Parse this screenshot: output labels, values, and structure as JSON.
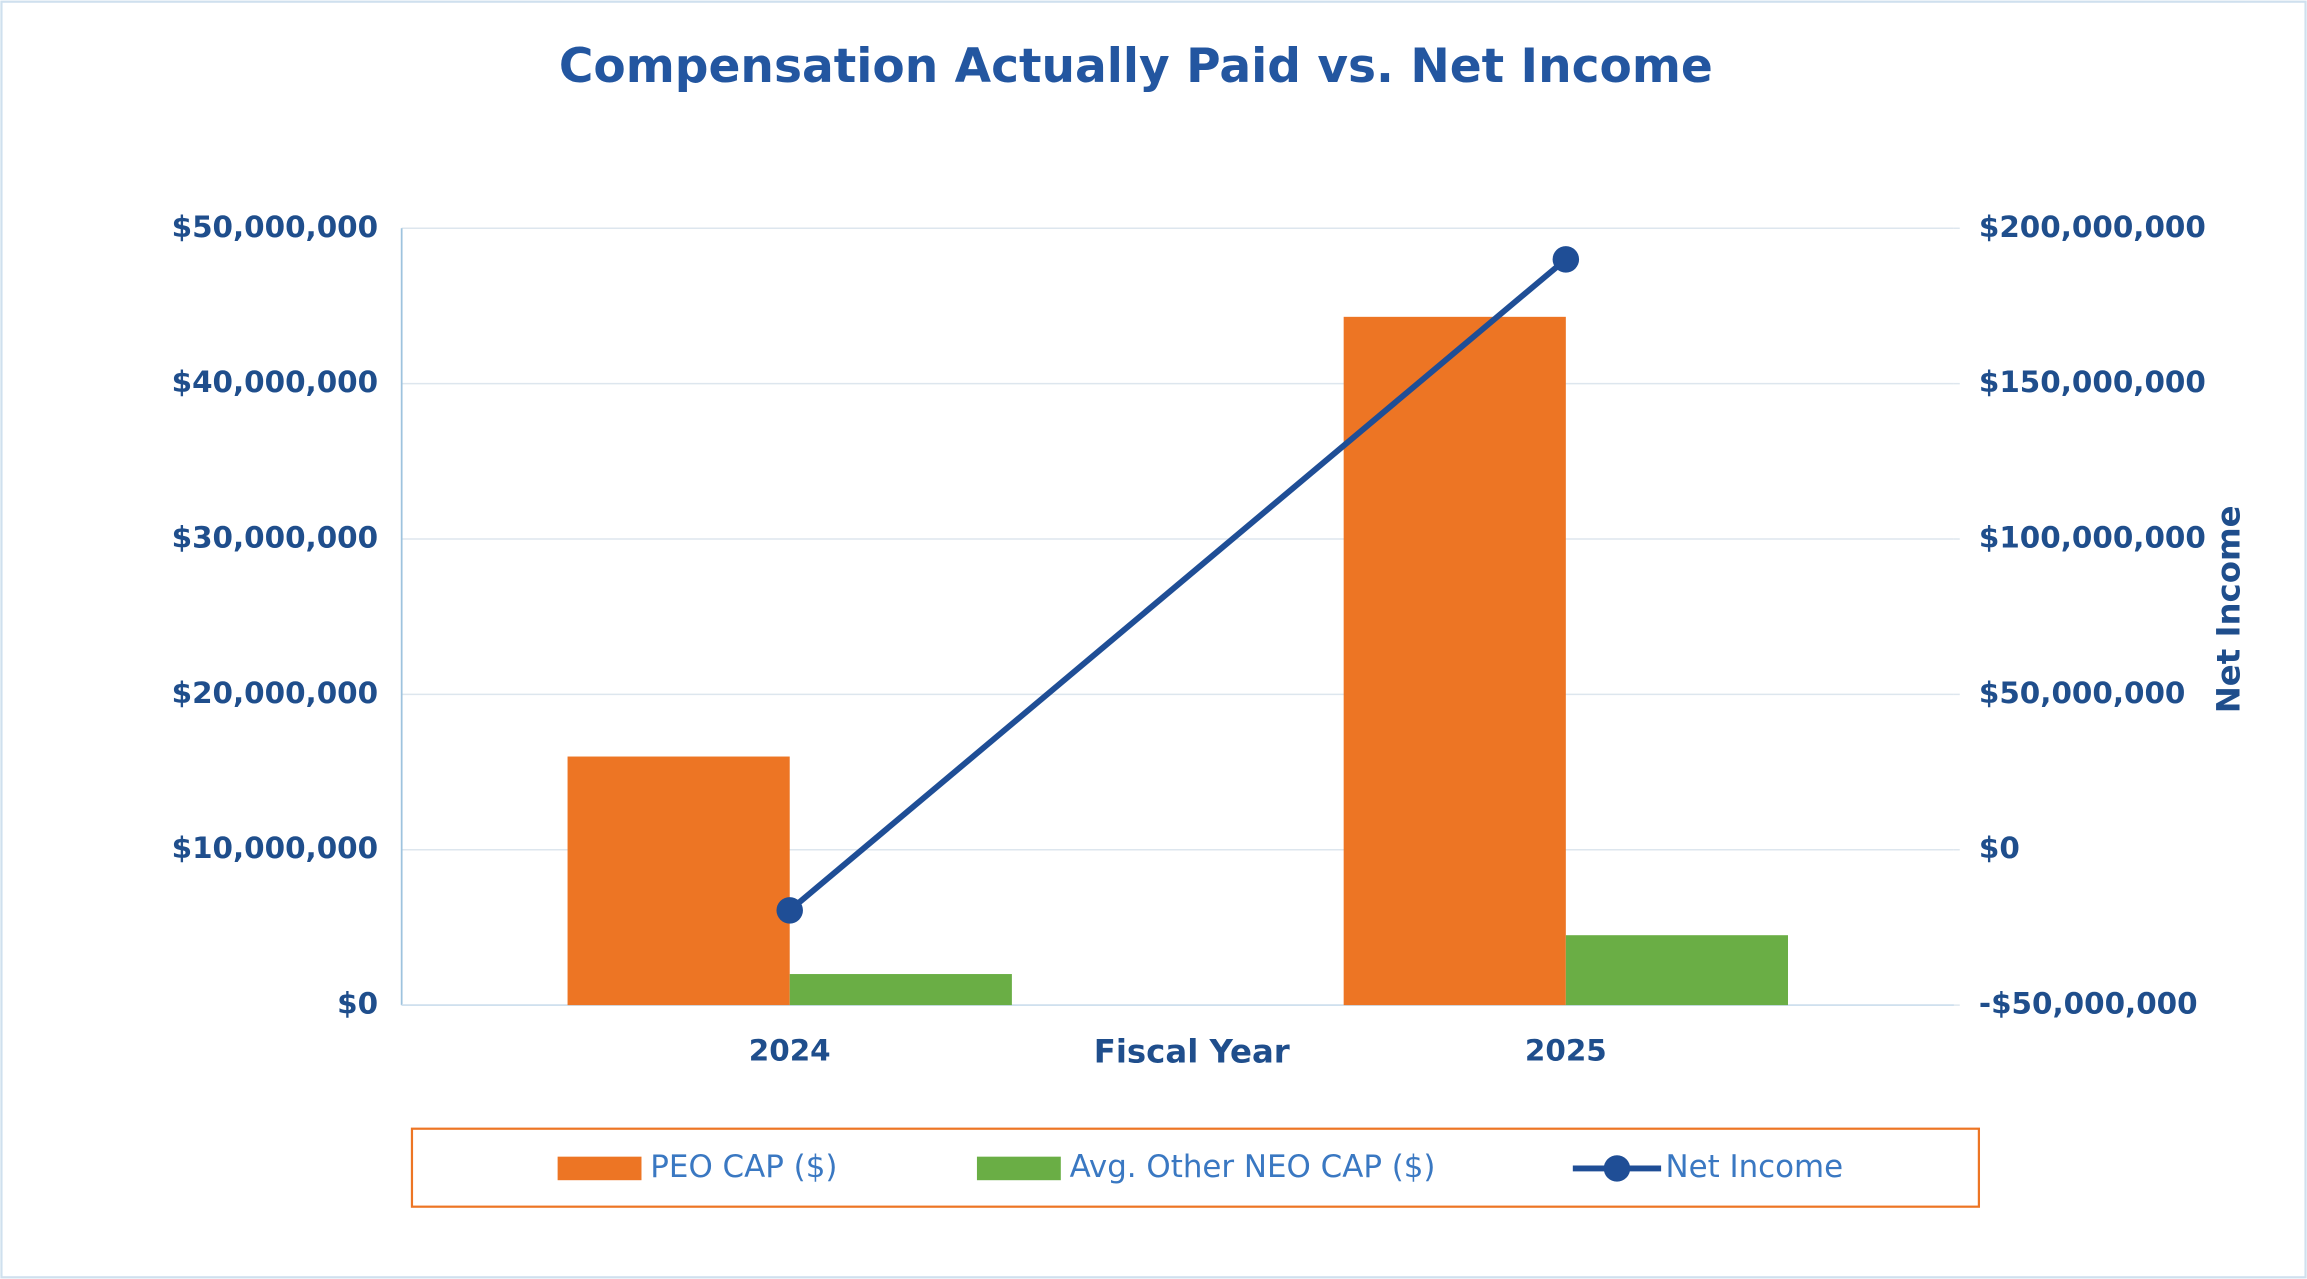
{
  "chart_data": {
    "type": "bar-line",
    "title": "Compensation Actually Paid vs. Net Income",
    "x_label": "Fiscal Year",
    "y2_label": "Net Income",
    "categories": [
      "2024",
      "2025"
    ],
    "series": [
      {
        "name": "PEO CAP ($)",
        "type": "bar",
        "color": "#ED7524",
        "values": [
          16000000,
          44300000
        ]
      },
      {
        "name": "Avg. Other NEO CAP ($)",
        "type": "bar",
        "color": "#6AAE45",
        "values": [
          2000000,
          4500000
        ]
      },
      {
        "name": "Net Income",
        "type": "line",
        "axis": "y2",
        "color": "#1F4E96",
        "values": [
          -19500000,
          190000000
        ]
      }
    ],
    "ylim": [
      0,
      50000000
    ],
    "yticks": [
      {
        "value": 0,
        "label": "$0"
      },
      {
        "value": 10000000,
        "label": "$10,000,000"
      },
      {
        "value": 20000000,
        "label": "$20,000,000"
      },
      {
        "value": 30000000,
        "label": "$30,000,000"
      },
      {
        "value": 40000000,
        "label": "$40,000,000"
      },
      {
        "value": 50000000,
        "label": "$50,000,000"
      }
    ],
    "y2lim": [
      -50000000,
      200000000
    ],
    "y2ticks": [
      {
        "value": -50000000,
        "label": "-$50,000,000"
      },
      {
        "value": 0,
        "label": "$0"
      },
      {
        "value": 50000000,
        "label": "$50,000,000"
      },
      {
        "value": 100000000,
        "label": "$100,000,000"
      },
      {
        "value": 150000000,
        "label": "$150,000,000"
      },
      {
        "value": 200000000,
        "label": "$200,000,000"
      }
    ],
    "grid": true,
    "legend": "bottom"
  }
}
